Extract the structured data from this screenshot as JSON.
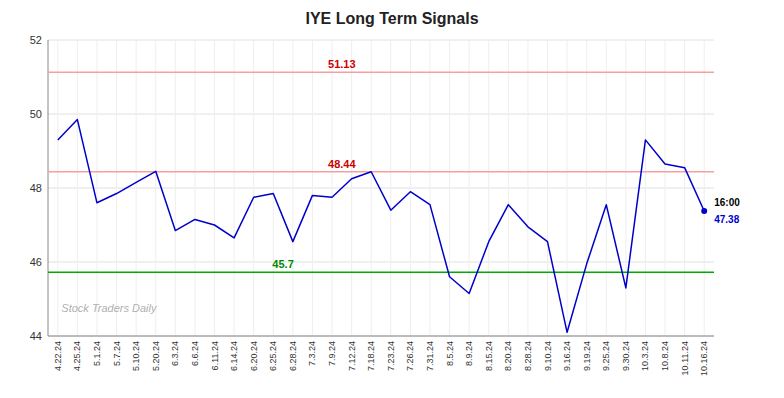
{
  "chart_data": {
    "type": "line",
    "title": "IYE Long Term Signals",
    "categories": [
      "4.22.24",
      "4.25.24",
      "5.1.24",
      "5.7.24",
      "5.10.24",
      "5.20.24",
      "6.3.24",
      "6.6.24",
      "6.11.24",
      "6.14.24",
      "6.20.24",
      "6.25.24",
      "6.28.24",
      "7.3.24",
      "7.9.24",
      "7.12.24",
      "7.18.24",
      "7.23.24",
      "7.26.24",
      "7.31.24",
      "8.5.24",
      "8.9.24",
      "8.15.24",
      "8.20.24",
      "8.28.24",
      "9.10.24",
      "9.16.24",
      "9.19.24",
      "9.25.24",
      "9.30.24",
      "10.3.24",
      "10.8.24",
      "10.11.24",
      "10.16.24"
    ],
    "values": [
      49.3,
      49.85,
      47.6,
      47.85,
      48.15,
      48.45,
      46.85,
      47.15,
      47.0,
      46.65,
      47.75,
      47.85,
      46.55,
      47.8,
      47.75,
      48.25,
      48.44,
      47.4,
      47.9,
      47.55,
      45.6,
      45.15,
      46.55,
      47.55,
      46.95,
      46.55,
      44.1,
      45.95,
      47.55,
      45.3,
      49.3,
      48.65,
      48.55,
      47.38
    ],
    "color": "#0000cc",
    "reference_lines": [
      {
        "value": 51.13,
        "label": "51.13",
        "color": "#f4a0a0",
        "label_color": "#cc0000"
      },
      {
        "value": 48.44,
        "label": "48.44",
        "color": "#f4a0a0",
        "label_color": "#cc0000"
      },
      {
        "value": 45.72,
        "label": "45.7",
        "color": "#00aa00",
        "label_color": "#008800"
      }
    ],
    "end_label": {
      "time": "16:00",
      "label": "47.38"
    },
    "watermark": "Stock Traders Daily",
    "ylim": [
      44,
      52
    ],
    "yticks": [
      44,
      46,
      48,
      50,
      52
    ],
    "grid": true
  }
}
